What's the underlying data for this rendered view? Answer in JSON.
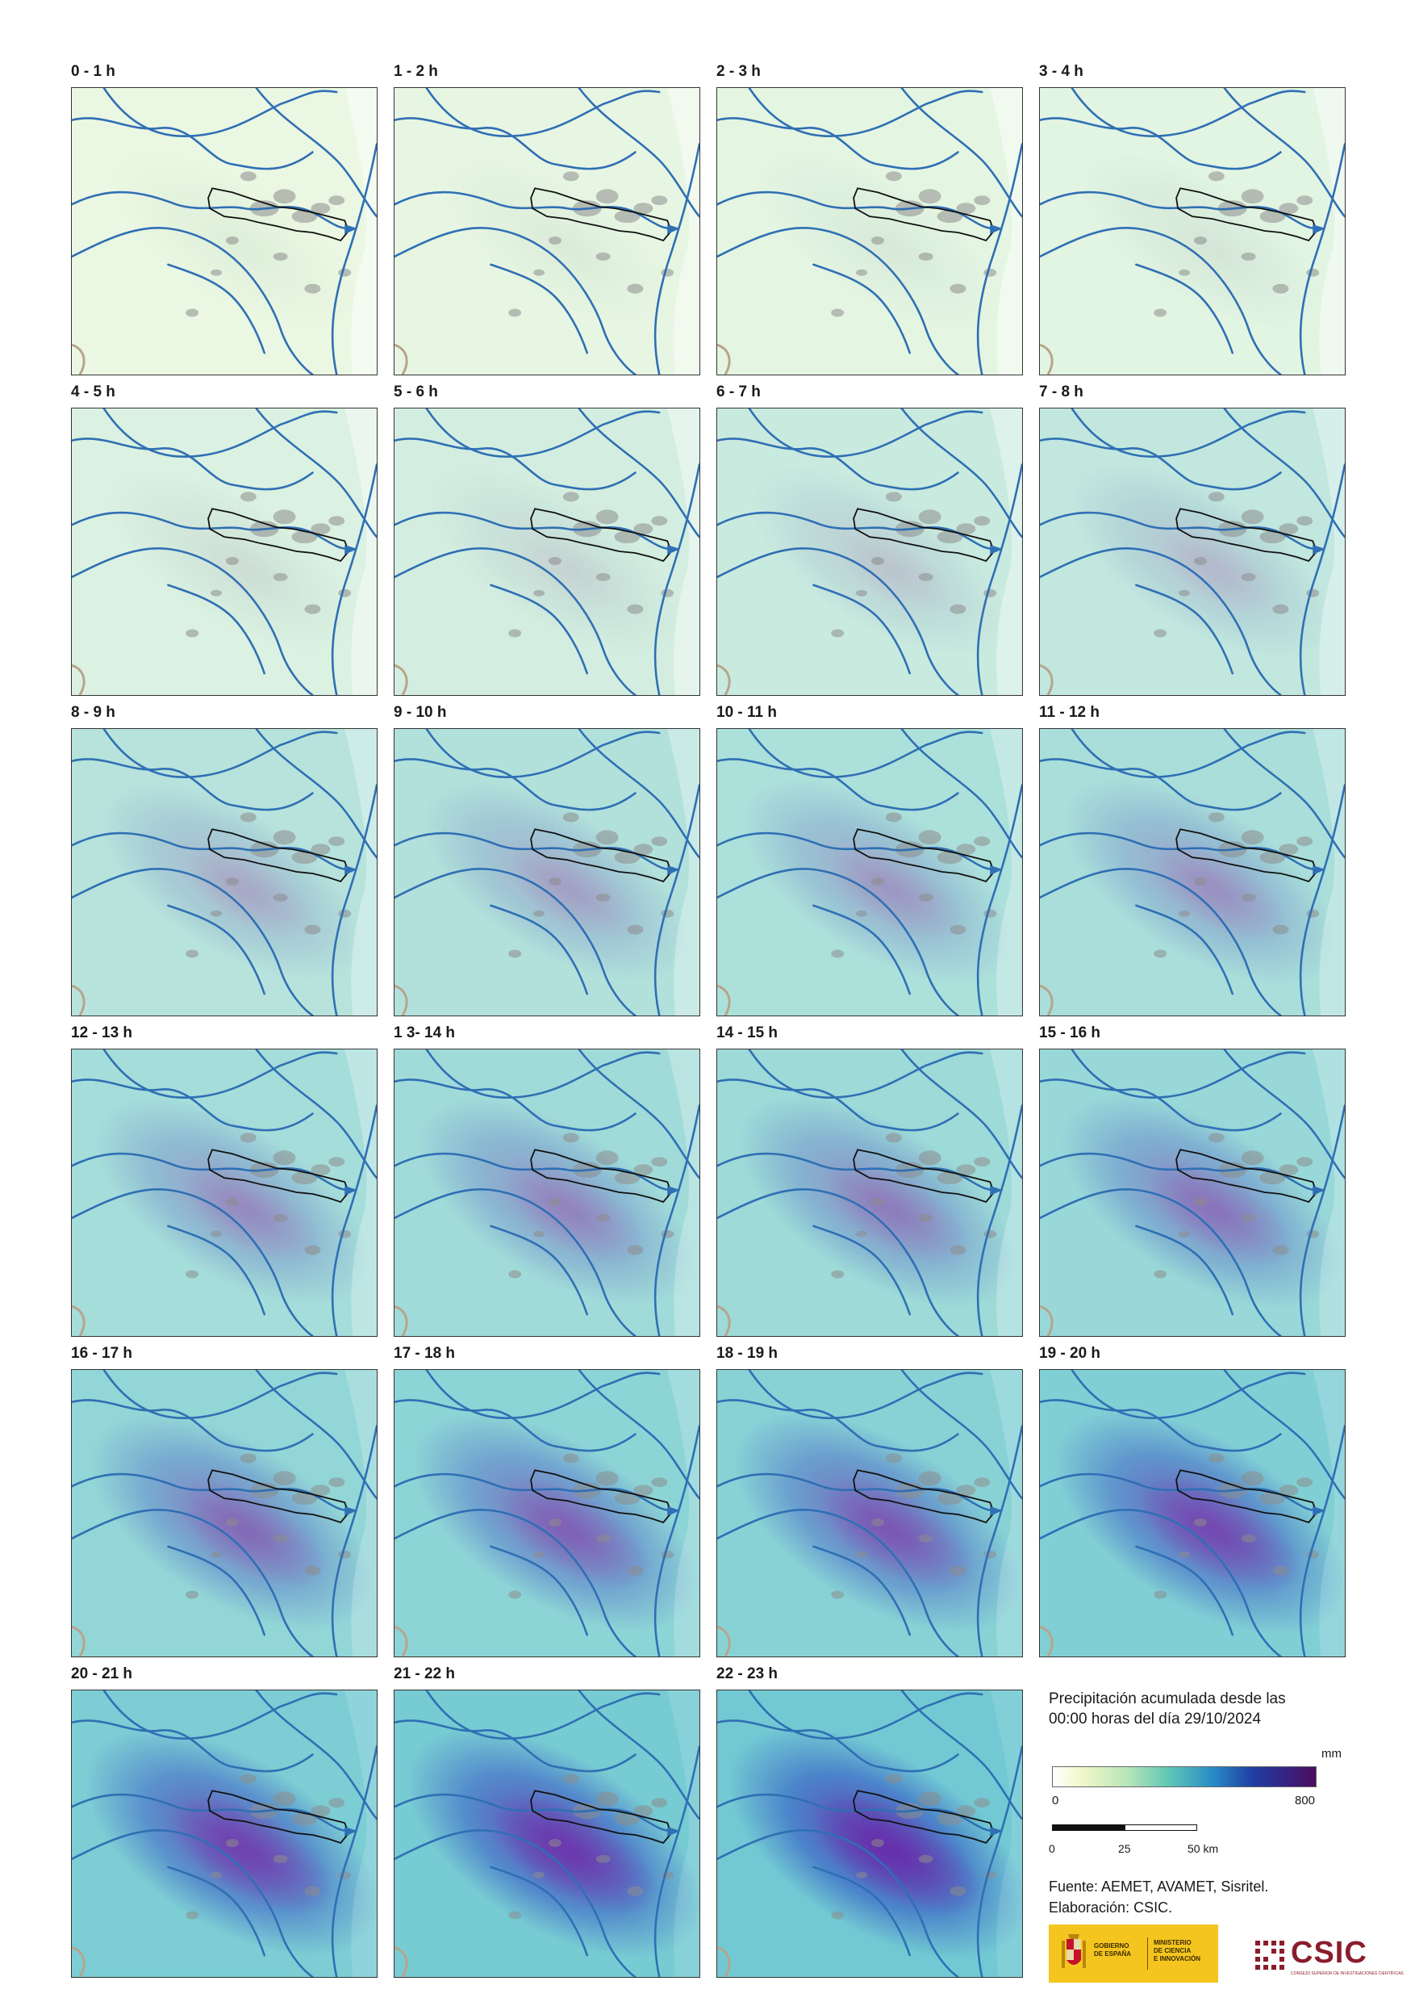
{
  "panels": [
    {
      "label": "0 - 1 h",
      "intensity": 0.05
    },
    {
      "label": "1 - 2 h",
      "intensity": 0.07
    },
    {
      "label": "2 - 3 h",
      "intensity": 0.09
    },
    {
      "label": "3 - 4 h",
      "intensity": 0.11
    },
    {
      "label": "4 - 5 h",
      "intensity": 0.16
    },
    {
      "label": "5 - 6 h",
      "intensity": 0.22
    },
    {
      "label": "6 - 7 h",
      "intensity": 0.3
    },
    {
      "label": "7 - 8 h",
      "intensity": 0.36
    },
    {
      "label": "8 - 9 h",
      "intensity": 0.44
    },
    {
      "label": "9 - 10 h",
      "intensity": 0.48
    },
    {
      "label": "10 - 11 h",
      "intensity": 0.52
    },
    {
      "label": "11 - 12 h",
      "intensity": 0.55
    },
    {
      "label": "12 - 13 h",
      "intensity": 0.58
    },
    {
      "label": "1 3- 14 h",
      "intensity": 0.61
    },
    {
      "label": "14 - 15 h",
      "intensity": 0.64
    },
    {
      "label": "15 - 16 h",
      "intensity": 0.68
    },
    {
      "label": "16 - 17 h",
      "intensity": 0.72
    },
    {
      "label": "17 - 18 h",
      "intensity": 0.76
    },
    {
      "label": "18 - 19 h",
      "intensity": 0.8
    },
    {
      "label": "19 - 20 h",
      "intensity": 0.86
    },
    {
      "label": "20 - 21 h",
      "intensity": 0.89
    },
    {
      "label": "21 - 22 h",
      "intensity": 0.93
    },
    {
      "label": "22 - 23 h",
      "intensity": 0.97
    }
  ],
  "legend": {
    "title_line1": "Precipitación acumulada desde las",
    "title_line2": "00:00 horas del día 29/10/2024",
    "unit": "mm",
    "min_label": "0",
    "max_label": "800",
    "scale_labels": [
      "0",
      "25",
      "50 km"
    ]
  },
  "source": {
    "line1": "Fuente: AEMET, AVAMET, Sisritel.",
    "line2": "Elaboración: CSIC."
  },
  "logos": {
    "gobierno_line1": "GOBIERNO",
    "gobierno_line2": "DE ESPAÑA",
    "ministerio_line1": "MINISTERIO",
    "ministerio_line2": "DE CIENCIA",
    "ministerio_line3": "E INNOVACIÓN",
    "csic": "CSIC",
    "csic_full": "CONSEJO SUPERIOR DE INVESTIGACIONES CIENTÍFICAS"
  },
  "colors": {
    "river": "#2f6fb4",
    "basin_outline": "#111111",
    "urban": "#8c8c8c",
    "border": "#b8a48a"
  }
}
